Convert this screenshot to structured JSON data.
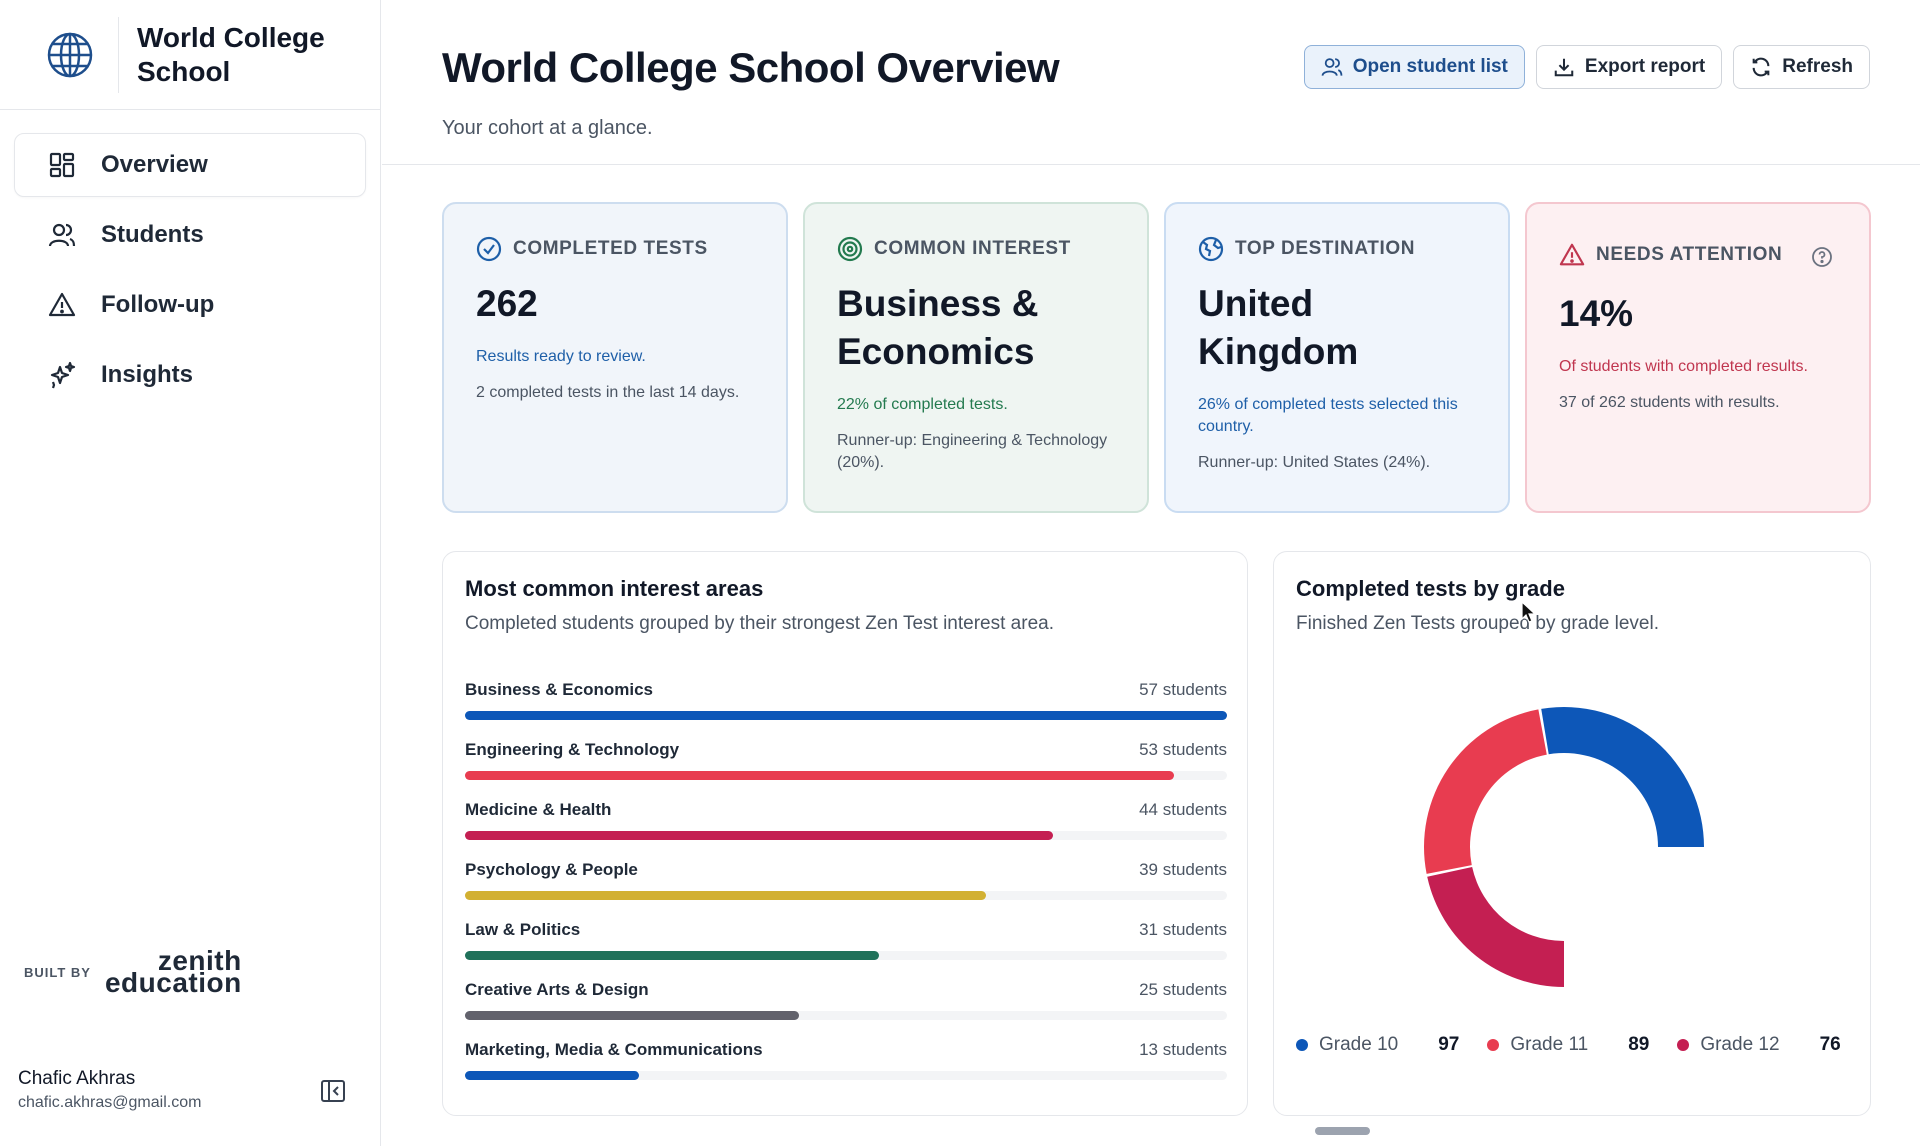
{
  "brand": {
    "name": "World College School"
  },
  "nav": {
    "items": [
      {
        "label": "Overview",
        "icon": "grid-icon",
        "active": true
      },
      {
        "label": "Students",
        "icon": "users-icon"
      },
      {
        "label": "Follow-up",
        "icon": "warning-icon"
      },
      {
        "label": "Insights",
        "icon": "sparkle-icon"
      }
    ]
  },
  "built_by": {
    "label": "BUILT BY",
    "logo_line1": "zenith",
    "logo_line2": "education"
  },
  "user": {
    "name": "Chafic Akhras",
    "email": "chafic.akhras@gmail.com"
  },
  "header": {
    "title": "World College School Overview",
    "subtitle": "Your cohort at a glance.",
    "buttons": {
      "open_students": "Open student list",
      "export": "Export report",
      "refresh": "Refresh"
    }
  },
  "cards": [
    {
      "label": "COMPLETED TESTS",
      "value": "262",
      "note": "Results ready to review.",
      "extra": "2 completed tests in the last 14 days.",
      "note_color": "#1e5fa8"
    },
    {
      "label": "COMMON INTEREST",
      "value": "Business & Economics",
      "note": "22% of completed tests.",
      "extra": "Runner-up: Engineering & Technology (20%).",
      "note_color": "#237a4f"
    },
    {
      "label": "TOP DESTINATION",
      "value": "United Kingdom",
      "note": "26% of completed tests selected this country.",
      "extra": "Runner-up: United States (24%).",
      "note_color": "#1e5fa8"
    },
    {
      "label": "NEEDS ATTENTION",
      "value": "14%",
      "note": "Of students with completed results.",
      "extra": "37 of 262 students with results.",
      "note_color": "#c0364f"
    }
  ],
  "interest_panel": {
    "title": "Most common interest areas",
    "subtitle": "Completed students grouped by their strongest Zen Test interest area.",
    "max": 57,
    "rows": [
      {
        "label": "Business & Economics",
        "count": 57,
        "count_text": "57 students",
        "color": "#0d57b8"
      },
      {
        "label": "Engineering & Technology",
        "count": 53,
        "count_text": "53 students",
        "color": "#e83c50"
      },
      {
        "label": "Medicine & Health",
        "count": 44,
        "count_text": "44 students",
        "color": "#c41f52"
      },
      {
        "label": "Psychology & People",
        "count": 39,
        "count_text": "39 students",
        "color": "#d2b032"
      },
      {
        "label": "Law & Politics",
        "count": 31,
        "count_text": "31 students",
        "color": "#20715a"
      },
      {
        "label": "Creative Arts & Design",
        "count": 25,
        "count_text": "25 students",
        "color": "#62626c"
      },
      {
        "label": "Marketing, Media & Communications",
        "count": 13,
        "count_text": "13 students",
        "color": "#0d57b8"
      }
    ]
  },
  "grade_panel": {
    "title": "Completed tests by grade",
    "subtitle": "Finished Zen Tests grouped by grade level."
  },
  "chart_data": {
    "type": "pie",
    "variant": "donut",
    "categories": [
      "Grade 10",
      "Grade 11",
      "Grade 12"
    ],
    "values": [
      97,
      89,
      76
    ],
    "colors": [
      "#0d57b8",
      "#e83c50",
      "#c41f52"
    ],
    "legend": "bottom"
  }
}
